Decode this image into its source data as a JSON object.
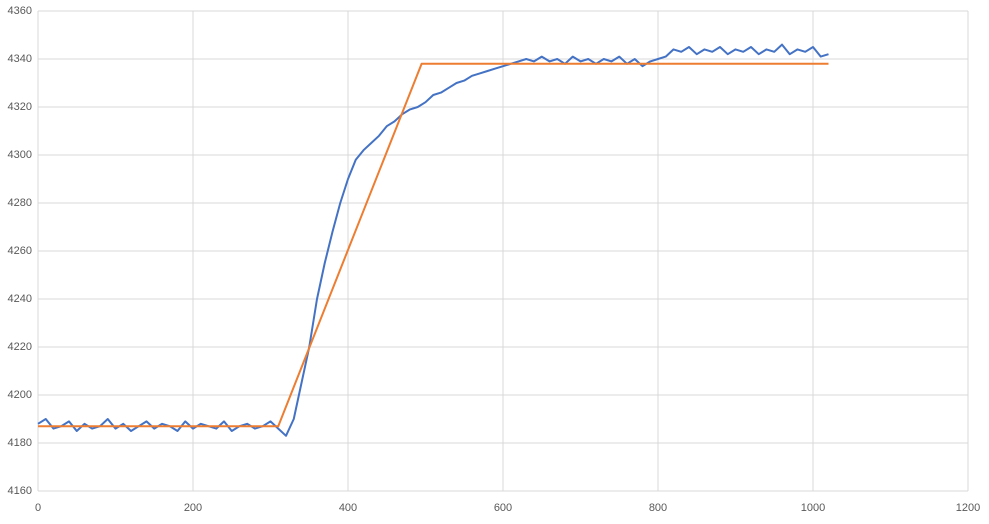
{
  "chart_data": {
    "type": "line",
    "xlim": [
      0,
      1200
    ],
    "xticks": [
      0,
      200,
      400,
      600,
      800,
      1000,
      1200
    ],
    "ylim": [
      4160,
      4360
    ],
    "yticks": [
      4160,
      4180,
      4200,
      4220,
      4240,
      4260,
      4280,
      4300,
      4320,
      4340,
      4360
    ],
    "grid": true,
    "series": [
      {
        "color": "#4472c4",
        "x": [
          0,
          10,
          20,
          30,
          40,
          50,
          60,
          70,
          80,
          90,
          100,
          110,
          120,
          130,
          140,
          150,
          160,
          170,
          180,
          190,
          200,
          210,
          220,
          230,
          240,
          250,
          260,
          270,
          280,
          290,
          300,
          310,
          320,
          330,
          340,
          350,
          360,
          370,
          380,
          390,
          400,
          410,
          420,
          430,
          440,
          450,
          460,
          470,
          480,
          490,
          500,
          510,
          520,
          530,
          540,
          550,
          560,
          570,
          580,
          590,
          600,
          610,
          620,
          630,
          640,
          650,
          660,
          670,
          680,
          690,
          700,
          710,
          720,
          730,
          740,
          750,
          760,
          770,
          780,
          790,
          800,
          810,
          820,
          830,
          840,
          850,
          860,
          870,
          880,
          890,
          900,
          910,
          920,
          930,
          940,
          950,
          960,
          970,
          980,
          990,
          1000,
          1010,
          1020
        ],
        "values": [
          4188,
          4190,
          4186,
          4187,
          4189,
          4185,
          4188,
          4186,
          4187,
          4190,
          4186,
          4188,
          4185,
          4187,
          4189,
          4186,
          4188,
          4187,
          4185,
          4189,
          4186,
          4188,
          4187,
          4186,
          4189,
          4185,
          4187,
          4188,
          4186,
          4187,
          4189,
          4186,
          4183,
          4190,
          4205,
          4220,
          4240,
          4255,
          4268,
          4280,
          4290,
          4298,
          4302,
          4305,
          4308,
          4312,
          4314,
          4317,
          4319,
          4320,
          4322,
          4325,
          4326,
          4328,
          4330,
          4331,
          4333,
          4334,
          4335,
          4336,
          4337,
          4338,
          4339,
          4340,
          4339,
          4341,
          4339,
          4340,
          4338,
          4341,
          4339,
          4340,
          4338,
          4340,
          4339,
          4341,
          4338,
          4340,
          4337,
          4339,
          4340,
          4341,
          4344,
          4343,
          4345,
          4342,
          4344,
          4343,
          4345,
          4342,
          4344,
          4343,
          4345,
          4342,
          4344,
          4343,
          4346,
          4342,
          4344,
          4343,
          4345,
          4341,
          4342
        ]
      },
      {
        "color": "#ed7d31",
        "x": [
          0,
          310,
          495,
          1020
        ],
        "values": [
          4187,
          4187,
          4338,
          4338
        ]
      }
    ]
  }
}
